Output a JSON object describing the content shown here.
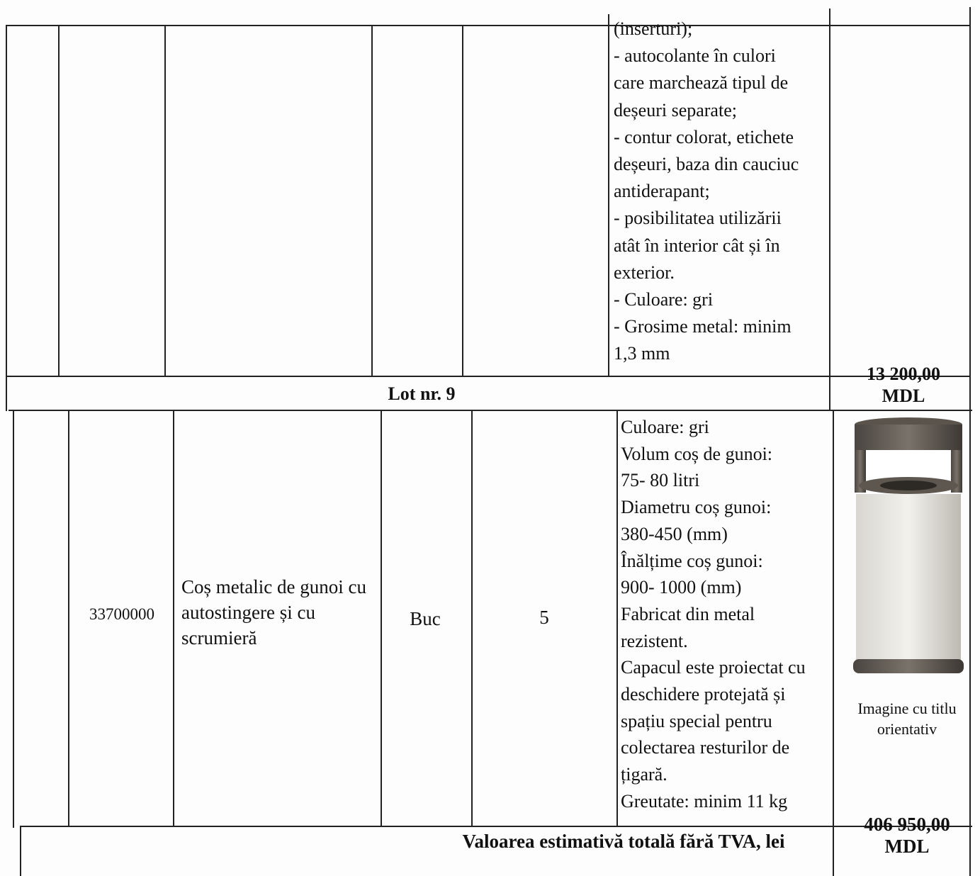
{
  "table": {
    "rows": [
      {
        "specs": [
          "(inserturi);",
          "- autocolante în culori",
          "care marchează tipul de",
          "deșeuri separate;",
          "- contur colorat, etichete",
          "deșeuri, baza din cauciuc",
          "antiderapant;",
          "- posibilitatea utilizării",
          "atât în interior cât și în",
          "exterior.",
          "- Culoare: gri",
          "- Grosime metal: minim",
          "1,3 mm"
        ]
      },
      {
        "lot": "Lot nr. 9",
        "price": "13 200,00 MDL"
      },
      {
        "code": "33700000",
        "name": "Coș metalic de gunoi cu autostingere și cu scrumieră",
        "unit": "Buc",
        "quantity": 5,
        "specs": [
          "Culoare: gri",
          "Volum coș de gunoi:",
          "75- 80 litri",
          "Diametru coș gunoi:",
          "380-450 (mm)",
          "Înălțime coș gunoi:",
          "900- 1000 (mm)",
          "Fabricat din metal",
          "rezistent.",
          "Capacul este proiectat cu",
          "deschidere protejată și",
          "spațiu special pentru",
          "colectarea resturilor de",
          "țigară.",
          "Greutate: minim 11 kg"
        ],
        "image_caption": "Imagine cu titlu orientativ"
      },
      {
        "total_label": "Valoarea estimativă totală fără TVA, lei",
        "price": "406 950,00 MDL"
      }
    ]
  }
}
